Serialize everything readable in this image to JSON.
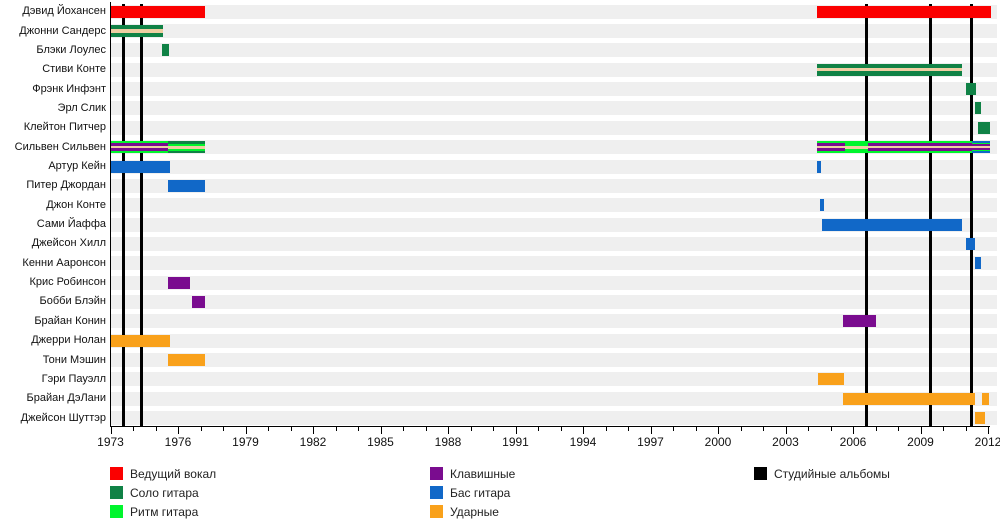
{
  "chart_data": {
    "type": "timeline",
    "title": "",
    "x_axis": {
      "start_year": 1973,
      "end_year": 2012,
      "minor_tick_step": 1,
      "label_step": 3,
      "tick_labels": [
        "1973",
        "1976",
        "1979",
        "1982",
        "1985",
        "1988",
        "1991",
        "1994",
        "1997",
        "2000",
        "2003",
        "2006",
        "2009",
        "2012"
      ]
    },
    "colors": {
      "lead_vocals": "#FB0000",
      "solo_guitar": "#108246",
      "rhythm_guitar": "#00F52D",
      "keyboards": "#7A0C8F",
      "bass": "#1168C8",
      "drums": "#F9A11B",
      "backing_vocals": "#EFCFA3",
      "albums": "#000000",
      "row_band": "#EFEFEF"
    },
    "album_lines_years": [
      1973.58,
      1974.37,
      2006.6,
      2009.45,
      2011.27
    ],
    "members": [
      {
        "name": "Дэвид Йохансен",
        "segments": [
          {
            "from": 1973,
            "to": 1977.2,
            "stripes": [
              [
                "lead_vocals",
                1
              ]
            ]
          },
          {
            "from": 2004.4,
            "to": 2012.15,
            "stripes": [
              [
                "lead_vocals",
                1
              ]
            ]
          }
        ]
      },
      {
        "name": "Джонни Сандерс",
        "segments": [
          {
            "from": 1973,
            "to": 1975.35,
            "stripes": [
              [
                "solo_guitar",
                4
              ],
              [
                "backing_vocals",
                3
              ],
              [
                "solo_guitar",
                4
              ]
            ]
          }
        ]
      },
      {
        "name": "Блэки Лоулес",
        "segments": [
          {
            "from": 1975.3,
            "to": 1975.62,
            "stripes": [
              [
                "solo_guitar",
                1
              ]
            ]
          }
        ]
      },
      {
        "name": "Стиви Конте",
        "segments": [
          {
            "from": 2004.4,
            "to": 2010.85,
            "stripes": [
              [
                "solo_guitar",
                4
              ],
              [
                "backing_vocals",
                3
              ],
              [
                "solo_guitar",
                4
              ]
            ]
          }
        ]
      },
      {
        "name": "Фрэнк Инфэнт",
        "segments": [
          {
            "from": 2011.0,
            "to": 2011.45,
            "stripes": [
              [
                "solo_guitar",
                1
              ]
            ]
          }
        ]
      },
      {
        "name": "Эрл Слик",
        "segments": [
          {
            "from": 2011.42,
            "to": 2011.67,
            "stripes": [
              [
                "solo_guitar",
                1
              ]
            ]
          }
        ]
      },
      {
        "name": "Клейтон Питчер",
        "segments": [
          {
            "from": 2011.55,
            "to": 2012.1,
            "stripes": [
              [
                "solo_guitar",
                1
              ]
            ]
          }
        ]
      },
      {
        "name": "Сильвен Сильвен",
        "segments": [
          {
            "from": 1973,
            "to": 1975.55,
            "stripes": [
              [
                "rhythm_guitar",
                2
              ],
              [
                "keyboards",
                2.5
              ],
              [
                "backing_vocals",
                2.5
              ],
              [
                "keyboards",
                2.5
              ],
              [
                "rhythm_guitar",
                2.5
              ]
            ]
          },
          {
            "from": 1975.55,
            "to": 1977.2,
            "stripes": [
              [
                "solo_guitar",
                2.5
              ],
              [
                "rhythm_guitar",
                2
              ],
              [
                "backing_vocals",
                3
              ],
              [
                "rhythm_guitar",
                2
              ],
              [
                "solo_guitar",
                2.5
              ]
            ]
          },
          {
            "from": 2004.4,
            "to": 2005.65,
            "stripes": [
              [
                "rhythm_guitar",
                2
              ],
              [
                "keyboards",
                2.5
              ],
              [
                "backing_vocals",
                2.5
              ],
              [
                "keyboards",
                2.5
              ],
              [
                "rhythm_guitar",
                2.5
              ]
            ]
          },
          {
            "from": 2005.65,
            "to": 2006.65,
            "stripes": [
              [
                "rhythm_guitar",
                4.5
              ],
              [
                "backing_vocals",
                3
              ],
              [
                "rhythm_guitar",
                4.5
              ]
            ]
          },
          {
            "from": 2006.65,
            "to": 2011.3,
            "stripes": [
              [
                "rhythm_guitar",
                2
              ],
              [
                "keyboards",
                2.5
              ],
              [
                "backing_vocals",
                2.5
              ],
              [
                "keyboards",
                2.5
              ],
              [
                "rhythm_guitar",
                2.5
              ]
            ]
          },
          {
            "from": 2011.3,
            "to": 2012.1,
            "stripes": [
              [
                "bass",
                2
              ],
              [
                "rhythm_guitar",
                1.5
              ],
              [
                "keyboards",
                2
              ],
              [
                "backing_vocals",
                2
              ],
              [
                "keyboards",
                2
              ],
              [
                "rhythm_guitar",
                1.5
              ],
              [
                "bass",
                2
              ]
            ]
          }
        ]
      },
      {
        "name": "Артур Кейн",
        "segments": [
          {
            "from": 1973,
            "to": 1975.65,
            "stripes": [
              [
                "bass",
                1
              ]
            ]
          },
          {
            "from": 2004.42,
            "to": 2004.58,
            "stripes": [
              [
                "bass",
                1
              ]
            ]
          }
        ]
      },
      {
        "name": "Питер Джордан",
        "segments": [
          {
            "from": 1975.55,
            "to": 1977.2,
            "stripes": [
              [
                "bass",
                1
              ]
            ]
          }
        ]
      },
      {
        "name": "Джон Конте",
        "segments": [
          {
            "from": 2004.55,
            "to": 2004.7,
            "stripes": [
              [
                "bass",
                1
              ]
            ]
          }
        ]
      },
      {
        "name": "Сами Йаффа",
        "segments": [
          {
            "from": 2004.6,
            "to": 2010.85,
            "stripes": [
              [
                "bass",
                1
              ]
            ]
          }
        ]
      },
      {
        "name": "Джейсон Хилл",
        "segments": [
          {
            "from": 2011.0,
            "to": 2011.42,
            "stripes": [
              [
                "bass",
                1
              ]
            ]
          }
        ]
      },
      {
        "name": "Кенни Ааронсон",
        "segments": [
          {
            "from": 2011.42,
            "to": 2011.67,
            "stripes": [
              [
                "bass",
                1
              ]
            ]
          }
        ]
      },
      {
        "name": "Крис Робинсон",
        "segments": [
          {
            "from": 1975.55,
            "to": 1976.55,
            "stripes": [
              [
                "keyboards",
                1
              ]
            ]
          }
        ]
      },
      {
        "name": "Бобби Блэйн",
        "segments": [
          {
            "from": 1976.6,
            "to": 1977.2,
            "stripes": [
              [
                "keyboards",
                1
              ]
            ]
          }
        ]
      },
      {
        "name": "Брайан Конин",
        "segments": [
          {
            "from": 2005.55,
            "to": 2007.0,
            "stripes": [
              [
                "keyboards",
                1
              ]
            ]
          }
        ]
      },
      {
        "name": "Джерри Нолан",
        "segments": [
          {
            "from": 1973,
            "to": 1975.65,
            "stripes": [
              [
                "drums",
                1
              ]
            ]
          }
        ]
      },
      {
        "name": "Тони Мэшин",
        "segments": [
          {
            "from": 1975.55,
            "to": 1977.2,
            "stripes": [
              [
                "drums",
                1
              ]
            ]
          }
        ]
      },
      {
        "name": "Гэри Пауэлл",
        "segments": [
          {
            "from": 2004.45,
            "to": 2005.6,
            "stripes": [
              [
                "drums",
                1
              ]
            ]
          }
        ]
      },
      {
        "name": "Брайан ДэЛани",
        "segments": [
          {
            "from": 2005.55,
            "to": 2011.4,
            "stripes": [
              [
                "drums",
                1
              ]
            ]
          },
          {
            "from": 2011.75,
            "to": 2012.05,
            "stripes": [
              [
                "drums",
                1
              ]
            ]
          }
        ]
      },
      {
        "name": "Джейсон Шуттэр",
        "segments": [
          {
            "from": 2011.4,
            "to": 2011.85,
            "stripes": [
              [
                "drums",
                1
              ]
            ]
          }
        ]
      }
    ],
    "legend": {
      "columns": [
        [
          {
            "label": "Ведущий вокал",
            "color": "lead_vocals"
          },
          {
            "label": "Соло гитара",
            "color": "solo_guitar"
          },
          {
            "label": "Ритм гитара",
            "color": "rhythm_guitar"
          }
        ],
        [
          {
            "label": "Клавишные",
            "color": "keyboards"
          },
          {
            "label": "Бас гитара",
            "color": "bass"
          },
          {
            "label": "Ударные",
            "color": "drums"
          }
        ],
        [
          {
            "label": "Студийные альбомы",
            "color": "albums"
          }
        ]
      ]
    }
  }
}
